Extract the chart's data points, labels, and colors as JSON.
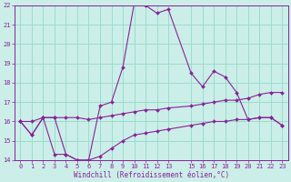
{
  "xlabel": "Windchill (Refroidissement éolien,°C)",
  "bg_color": "#cceee8",
  "grid_color": "#99ddcc",
  "line_color": "#882299",
  "xmin": -0.5,
  "xmax": 23.5,
  "ymin": 14,
  "ymax": 22,
  "yticks": [
    14,
    15,
    16,
    17,
    18,
    19,
    20,
    21,
    22
  ],
  "xticks": [
    0,
    1,
    2,
    3,
    4,
    5,
    6,
    7,
    8,
    9,
    10,
    11,
    12,
    13,
    15,
    16,
    17,
    18,
    19,
    20,
    21,
    22,
    23
  ],
  "line1_x": [
    0,
    1,
    2,
    3,
    4,
    5,
    6,
    7,
    8,
    9,
    10,
    11,
    12,
    13,
    15,
    16,
    17,
    18,
    19,
    20,
    21,
    22,
    23
  ],
  "line1_y": [
    16.0,
    15.3,
    16.2,
    16.2,
    14.3,
    14.0,
    14.0,
    16.8,
    17.0,
    18.8,
    22.1,
    22.0,
    21.6,
    21.8,
    18.5,
    17.8,
    18.6,
    18.3,
    17.5,
    16.1,
    16.2,
    16.2,
    15.8
  ],
  "line2_x": [
    0,
    1,
    2,
    3,
    4,
    5,
    6,
    7,
    8,
    9,
    10,
    11,
    12,
    13,
    15,
    16,
    17,
    18,
    19,
    20,
    21,
    22,
    23
  ],
  "line2_y": [
    16.0,
    16.0,
    16.2,
    16.2,
    16.2,
    16.2,
    16.1,
    16.2,
    16.3,
    16.4,
    16.5,
    16.6,
    16.6,
    16.7,
    16.8,
    16.9,
    17.0,
    17.1,
    17.1,
    17.2,
    17.4,
    17.5,
    17.5
  ],
  "line3_x": [
    0,
    1,
    2,
    3,
    4,
    5,
    6,
    7,
    8,
    9,
    10,
    11,
    12,
    13,
    15,
    16,
    17,
    18,
    19,
    20,
    21,
    22,
    23
  ],
  "line3_y": [
    16.0,
    15.3,
    16.2,
    14.3,
    14.3,
    14.0,
    14.0,
    14.2,
    14.6,
    15.0,
    15.3,
    15.4,
    15.5,
    15.6,
    15.8,
    15.9,
    16.0,
    16.0,
    16.1,
    16.1,
    16.2,
    16.2,
    15.8
  ]
}
